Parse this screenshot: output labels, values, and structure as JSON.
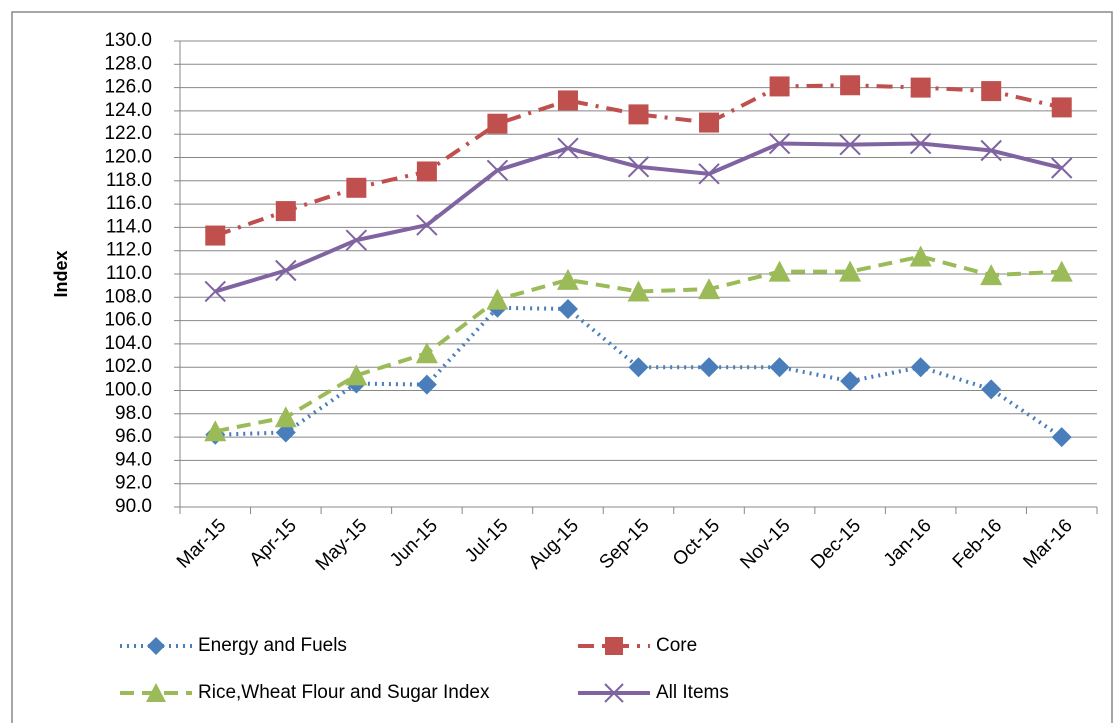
{
  "chart_data": {
    "type": "line",
    "y_label": "Index",
    "categories": [
      "Mar-15",
      "Apr-15",
      "May-15",
      "Jun-15",
      "Jul-15",
      "Aug-15",
      "Sep-15",
      "Oct-15",
      "Nov-15",
      "Dec-15",
      "Jan-16",
      "Feb-16",
      "Mar-16"
    ],
    "series": [
      {
        "name": "Energy and Fuels",
        "color": "#4a7ebb",
        "dash": "dotted",
        "marker": "diamond",
        "values": [
          96.2,
          96.4,
          100.6,
          100.5,
          107.1,
          107.0,
          102.0,
          102.0,
          102.0,
          100.8,
          102.0,
          100.1,
          96.0
        ]
      },
      {
        "name": "Core",
        "color": "#c0504d",
        "dash": "dash-dot",
        "marker": "square",
        "values": [
          113.3,
          115.4,
          117.4,
          118.8,
          122.9,
          124.9,
          123.7,
          123.0,
          126.1,
          126.2,
          126.0,
          125.7,
          124.3
        ]
      },
      {
        "name": "Rice,Wheat Flour and Sugar Index",
        "color": "#9bbb59",
        "dash": "dashed",
        "marker": "triangle",
        "values": [
          96.5,
          97.7,
          101.3,
          103.2,
          107.8,
          109.5,
          108.5,
          108.7,
          110.2,
          110.2,
          111.5,
          109.9,
          110.2
        ]
      },
      {
        "name": "All Items",
        "color": "#8064a2",
        "dash": "solid",
        "marker": "x",
        "values": [
          108.5,
          110.3,
          112.9,
          114.2,
          118.9,
          120.8,
          119.2,
          118.6,
          121.2,
          121.1,
          121.2,
          120.6,
          119.1
        ]
      }
    ],
    "ylim": [
      90,
      130
    ],
    "yticks": [
      {
        "value": 90,
        "label": "90.0"
      },
      {
        "value": 92,
        "label": "92.0"
      },
      {
        "value": 94,
        "label": "94.0"
      },
      {
        "value": 96,
        "label": "96.0"
      },
      {
        "value": 98,
        "label": "98.0"
      },
      {
        "value": 100,
        "label": "100.0"
      },
      {
        "value": 102,
        "label": "102.0"
      },
      {
        "value": 104,
        "label": "104.0"
      },
      {
        "value": 106,
        "label": "106.0"
      },
      {
        "value": 108,
        "label": "108.0"
      },
      {
        "value": 110,
        "label": "110.0"
      },
      {
        "value": 112,
        "label": "112.0"
      },
      {
        "value": 114,
        "label": "114.0"
      },
      {
        "value": 116,
        "label": "116.0"
      },
      {
        "value": 118,
        "label": "118.0"
      },
      {
        "value": 120,
        "label": "120.0"
      },
      {
        "value": 122,
        "label": "122.0"
      },
      {
        "value": 124,
        "label": "124.0"
      },
      {
        "value": 126,
        "label": "126.0"
      },
      {
        "value": 128,
        "label": "128.0"
      },
      {
        "value": 130,
        "label": "130.0"
      }
    ],
    "grid": true,
    "legend": "bottom"
  }
}
